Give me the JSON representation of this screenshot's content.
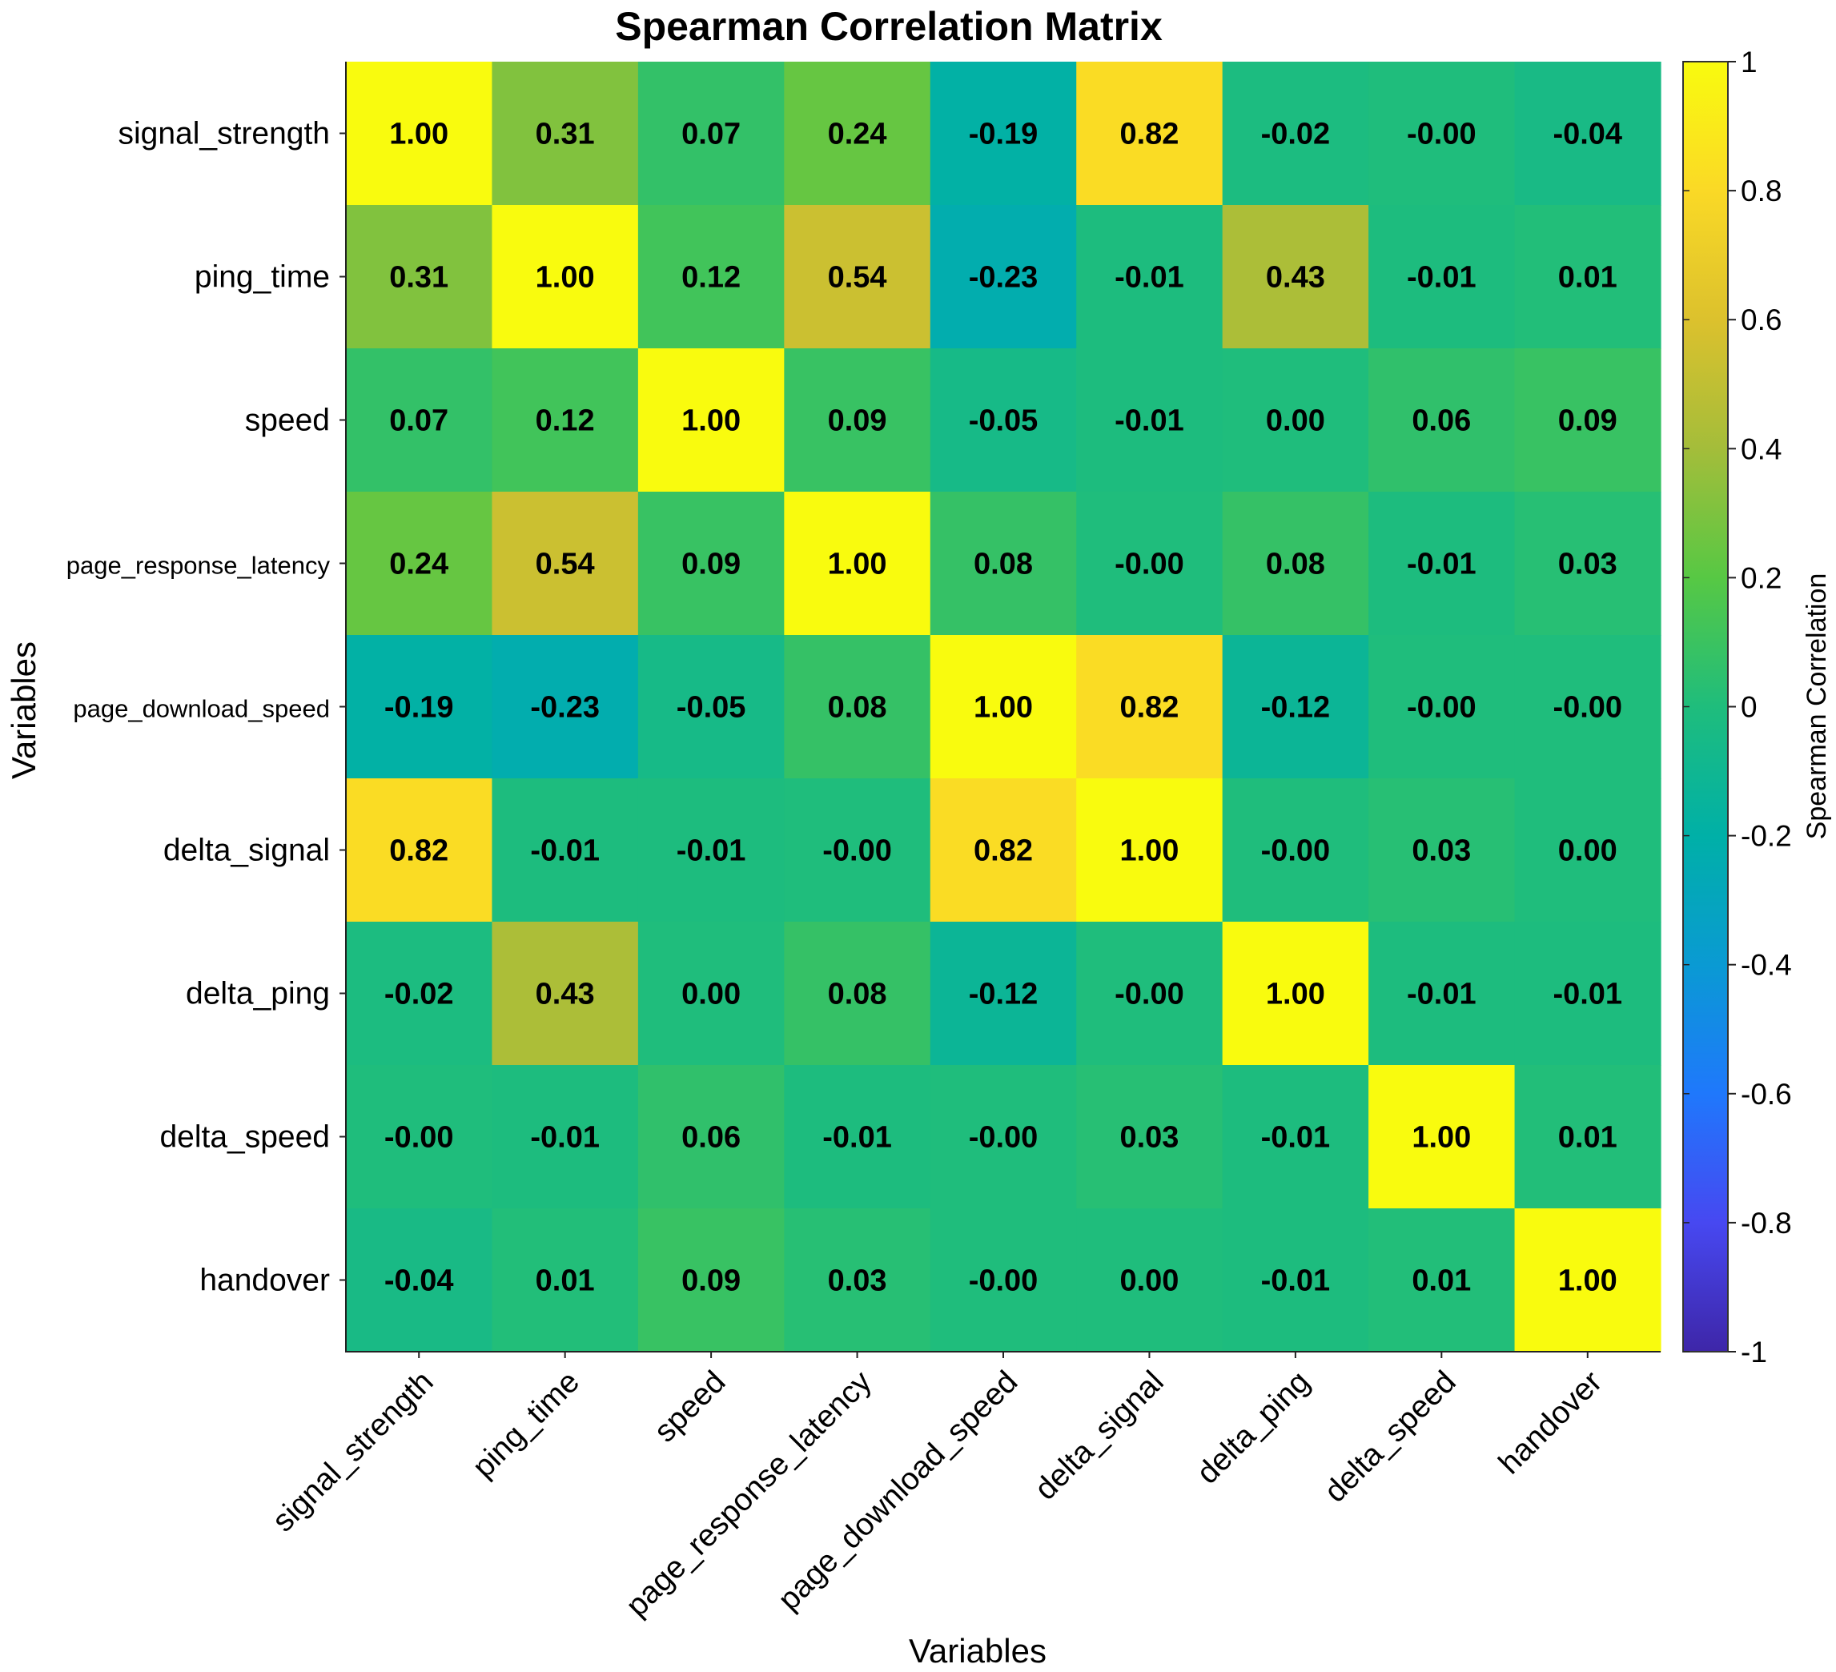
{
  "chart_data": {
    "type": "heatmap",
    "title": "Spearman Correlation Matrix",
    "xlabel": "Variables",
    "ylabel": "Variables",
    "variables": [
      "signal_strength",
      "ping_time",
      "speed",
      "page_response_latency",
      "page_download_speed",
      "delta_signal",
      "delta_ping",
      "delta_speed",
      "handover"
    ],
    "values": [
      [
        1.0,
        0.31,
        0.07,
        0.24,
        -0.19,
        0.82,
        -0.02,
        -0.0,
        -0.04
      ],
      [
        0.31,
        1.0,
        0.12,
        0.54,
        -0.23,
        -0.01,
        0.43,
        -0.01,
        0.01
      ],
      [
        0.07,
        0.12,
        1.0,
        0.09,
        -0.05,
        -0.01,
        0.0,
        0.06,
        0.09
      ],
      [
        0.24,
        0.54,
        0.09,
        1.0,
        0.08,
        -0.0,
        0.08,
        -0.01,
        0.03
      ],
      [
        -0.19,
        -0.23,
        -0.05,
        0.08,
        1.0,
        0.82,
        -0.12,
        -0.0,
        -0.0
      ],
      [
        0.82,
        -0.01,
        -0.01,
        -0.0,
        0.82,
        1.0,
        -0.0,
        0.03,
        0.0
      ],
      [
        -0.02,
        0.43,
        0.0,
        0.08,
        -0.12,
        -0.0,
        1.0,
        -0.01,
        -0.01
      ],
      [
        -0.0,
        -0.01,
        0.06,
        -0.01,
        -0.0,
        0.03,
        -0.01,
        1.0,
        0.01
      ],
      [
        -0.04,
        0.01,
        0.09,
        0.03,
        -0.0,
        0.0,
        -0.01,
        0.01,
        1.0
      ]
    ],
    "cell_labels": [
      [
        "1.00",
        "0.31",
        "0.07",
        "0.24",
        "-0.19",
        "0.82",
        "-0.02",
        "-0.00",
        "-0.04"
      ],
      [
        "0.31",
        "1.00",
        "0.12",
        "0.54",
        "-0.23",
        "-0.01",
        "0.43",
        "-0.01",
        "0.01"
      ],
      [
        "0.07",
        "0.12",
        "1.00",
        "0.09",
        "-0.05",
        "-0.01",
        "0.00",
        "0.06",
        "0.09"
      ],
      [
        "0.24",
        "0.54",
        "0.09",
        "1.00",
        "0.08",
        "-0.00",
        "0.08",
        "-0.01",
        "0.03"
      ],
      [
        "-0.19",
        "-0.23",
        "-0.05",
        "0.08",
        "1.00",
        "0.82",
        "-0.12",
        "-0.00",
        "-0.00"
      ],
      [
        "0.82",
        "-0.01",
        "-0.01",
        "-0.00",
        "0.82",
        "1.00",
        "-0.00",
        "0.03",
        "0.00"
      ],
      [
        "-0.02",
        "0.43",
        "0.00",
        "0.08",
        "-0.12",
        "-0.00",
        "1.00",
        "-0.01",
        "-0.01"
      ],
      [
        "-0.00",
        "-0.01",
        "0.06",
        "-0.01",
        "-0.00",
        "0.03",
        "-0.01",
        "1.00",
        "0.01"
      ],
      [
        "-0.04",
        "0.01",
        "0.09",
        "0.03",
        "-0.00",
        "0.00",
        "-0.01",
        "0.01",
        "1.00"
      ]
    ],
    "colorbar": {
      "label": "Spearman Correlation",
      "range": [
        -1,
        1
      ],
      "ticks": [
        1,
        0.8,
        0.6,
        0.4,
        0.2,
        0,
        -0.2,
        -0.4,
        -0.6,
        -0.8,
        -1
      ],
      "tick_labels": [
        "1",
        "0.8",
        "0.6",
        "0.4",
        "0.2",
        "0",
        "-0.2",
        "-0.4",
        "-0.6",
        "-0.8",
        "-1"
      ],
      "colormap": "parula",
      "colormap_stops": [
        "#3e26a8",
        "#4748f1",
        "#1f78fc",
        "#0a9ad3",
        "#00b0a7",
        "#1fbd7c",
        "#57c844",
        "#a4bd3a",
        "#dcc12d",
        "#fad926",
        "#f9fb0e"
      ],
      "placement": "right"
    },
    "grid": false,
    "colors": {
      "text": "#000000",
      "background": "#ffffff"
    }
  }
}
